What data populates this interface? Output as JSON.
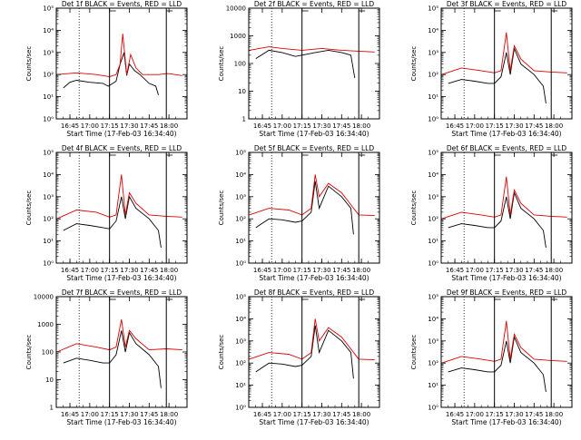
{
  "chart_data": [
    {
      "type": "line",
      "title": "Det 1f BLACK = Events, RED = LLD",
      "xlabel": "Start Time (17-Feb-03 16:34:40)",
      "ylabel": "Counts/sec",
      "y_scale": "log",
      "ylim": [
        1,
        100000
      ],
      "y_tick_labels": [
        "10⁰",
        "10¹",
        "10²",
        "10³",
        "10⁴",
        "10⁵"
      ],
      "x_tick_labels": [
        "16:45",
        "17:00",
        "17:15",
        "17:30",
        "17:45",
        "18:00"
      ],
      "dotted_marker_time": "16:52",
      "solid_marker_times": [
        "17:15",
        "17:58"
      ],
      "series": [
        {
          "color": "#000000",
          "x": [
            "16:40",
            "16:45",
            "16:50",
            "17:00",
            "17:10",
            "17:14",
            "17:16",
            "17:20",
            "17:23",
            "17:26",
            "17:28",
            "17:30",
            "17:34",
            "17:38",
            "17:45",
            "17:50",
            "17:52"
          ],
          "values": [
            25,
            45,
            55,
            45,
            40,
            30,
            35,
            50,
            300,
            1000,
            90,
            300,
            150,
            100,
            40,
            30,
            12
          ]
        },
        {
          "color": "#dd0000",
          "x": [
            "16:35",
            "16:50",
            "17:05",
            "17:15",
            "17:20",
            "17:23",
            "17:25",
            "17:28",
            "17:31",
            "17:35",
            "17:40",
            "17:45",
            "17:52",
            "17:58",
            "18:00",
            "18:10"
          ],
          "values": [
            100,
            120,
            100,
            80,
            100,
            300,
            7000,
            100,
            800,
            200,
            100,
            100,
            100,
            110,
            110,
            90
          ]
        }
      ]
    },
    {
      "type": "line",
      "title": "Det 2f BLACK = Events, RED = LLD",
      "xlabel": "Start Time (17-Feb-03 16:34:40)",
      "ylabel": "Counts/sec",
      "y_scale": "log",
      "ylim": [
        1,
        10000
      ],
      "y_tick_labels": [
        "1",
        "10",
        "100",
        "1000",
        "10000"
      ],
      "x_tick_labels": [
        "16:45",
        "17:00",
        "17:15",
        "17:30",
        "17:45",
        "18:00"
      ],
      "dotted_marker_time": "16:52",
      "solid_marker_times": [
        "17:15",
        "17:58"
      ],
      "series": [
        {
          "color": "#000000",
          "x": [
            "16:40",
            "16:50",
            "17:00",
            "17:10",
            "17:15",
            "17:25",
            "17:35",
            "17:45",
            "17:52",
            "17:55"
          ],
          "values": [
            150,
            300,
            250,
            180,
            200,
            250,
            300,
            250,
            200,
            30
          ]
        },
        {
          "color": "#dd0000",
          "x": [
            "16:35",
            "16:50",
            "17:00",
            "17:15",
            "17:30",
            "17:45",
            "17:58",
            "18:10"
          ],
          "values": [
            300,
            400,
            350,
            300,
            350,
            300,
            280,
            260
          ]
        }
      ]
    },
    {
      "type": "line",
      "title": "Det 3f BLACK = Events, RED = LLD",
      "xlabel": "Start Time (17-Feb-03 16:34:40)",
      "ylabel": "Counts/sec",
      "y_scale": "log",
      "ylim": [
        1,
        100000
      ],
      "y_tick_labels": [
        "10⁰",
        "10¹",
        "10²",
        "10³",
        "10⁴",
        "10⁵"
      ],
      "x_tick_labels": [
        "16:45",
        "17:00",
        "17:15",
        "17:30",
        "17:45",
        "18:00"
      ],
      "dotted_marker_time": "16:52",
      "solid_marker_times": [
        "17:15",
        "17:58"
      ],
      "series": [
        {
          "color": "#000000",
          "x": [
            "16:40",
            "16:50",
            "17:00",
            "17:10",
            "17:15",
            "17:20",
            "17:24",
            "17:27",
            "17:30",
            "17:35",
            "17:45",
            "17:52",
            "17:54"
          ],
          "values": [
            40,
            60,
            50,
            40,
            40,
            80,
            1000,
            100,
            1500,
            300,
            100,
            30,
            5
          ]
        },
        {
          "color": "#dd0000",
          "x": [
            "16:35",
            "16:50",
            "17:05",
            "17:15",
            "17:20",
            "17:24",
            "17:27",
            "17:30",
            "17:35",
            "17:45",
            "17:58",
            "18:10"
          ],
          "values": [
            100,
            200,
            150,
            120,
            150,
            8000,
            150,
            2000,
            500,
            150,
            130,
            120
          ]
        }
      ]
    },
    {
      "type": "line",
      "title": "Det 4f BLACK = Events, RED = LLD",
      "xlabel": "Start Time (17-Feb-03 16:34:40)",
      "ylabel": "Counts/sec",
      "y_scale": "log",
      "ylim": [
        1,
        100000
      ],
      "y_tick_labels": [
        "10⁰",
        "10¹",
        "10²",
        "10³",
        "10⁴",
        "10⁵"
      ],
      "x_tick_labels": [
        "16:45",
        "17:00",
        "17:15",
        "17:30",
        "17:45",
        "18:00"
      ],
      "dotted_marker_time": "16:52",
      "solid_marker_times": [
        "17:15",
        "17:58"
      ],
      "series": [
        {
          "color": "#000000",
          "x": [
            "16:40",
            "16:50",
            "17:00",
            "17:10",
            "17:15",
            "17:20",
            "17:24",
            "17:27",
            "17:30",
            "17:35",
            "17:45",
            "17:52",
            "17:54"
          ],
          "values": [
            30,
            60,
            50,
            40,
            35,
            80,
            1000,
            100,
            1000,
            300,
            100,
            30,
            5
          ]
        },
        {
          "color": "#dd0000",
          "x": [
            "16:35",
            "16:50",
            "17:05",
            "17:15",
            "17:20",
            "17:24",
            "17:27",
            "17:30",
            "17:35",
            "17:45",
            "17:58",
            "18:10"
          ],
          "values": [
            100,
            250,
            200,
            120,
            150,
            10000,
            150,
            1500,
            500,
            150,
            130,
            120
          ]
        }
      ]
    },
    {
      "type": "line",
      "title": "Det 5f BLACK = Events, RED = LLD",
      "xlabel": "Start Time (17-Feb-03 16:34:40)",
      "ylabel": "Counts/sec",
      "y_scale": "log",
      "ylim": [
        1,
        100000
      ],
      "y_tick_labels": [
        "10⁰",
        "10¹",
        "10²",
        "10³",
        "10⁴",
        "10⁵"
      ],
      "x_tick_labels": [
        "16:45",
        "17:00",
        "17:15",
        "17:30",
        "17:45",
        "18:00"
      ],
      "dotted_marker_time": "16:52",
      "solid_marker_times": [
        "17:15",
        "17:58"
      ],
      "series": [
        {
          "color": "#000000",
          "x": [
            "16:40",
            "16:50",
            "17:00",
            "17:10",
            "17:15",
            "17:22",
            "17:25",
            "17:28",
            "17:35",
            "17:45",
            "17:52",
            "17:54"
          ],
          "values": [
            40,
            100,
            90,
            70,
            80,
            200,
            5000,
            300,
            3000,
            1000,
            300,
            20
          ]
        },
        {
          "color": "#dd0000",
          "x": [
            "16:35",
            "16:50",
            "17:05",
            "17:15",
            "17:22",
            "17:25",
            "17:28",
            "17:35",
            "17:45",
            "17:58",
            "18:10"
          ],
          "values": [
            150,
            300,
            250,
            150,
            300,
            10000,
            1000,
            4000,
            1500,
            150,
            140
          ]
        }
      ]
    },
    {
      "type": "line",
      "title": "Det 6f BLACK = Events, RED = LLD",
      "xlabel": "Start Time (17-Feb-03 16:34:40)",
      "ylabel": "Counts/sec",
      "y_scale": "log",
      "ylim": [
        1,
        100000
      ],
      "y_tick_labels": [
        "10⁰",
        "10¹",
        "10²",
        "10³",
        "10⁴",
        "10⁵"
      ],
      "x_tick_labels": [
        "16:45",
        "17:00",
        "17:15",
        "17:30",
        "17:45",
        "18:00"
      ],
      "dotted_marker_time": "16:52",
      "solid_marker_times": [
        "17:15",
        "17:58"
      ],
      "series": [
        {
          "color": "#000000",
          "x": [
            "16:40",
            "16:50",
            "17:00",
            "17:10",
            "17:15",
            "17:20",
            "17:24",
            "17:27",
            "17:30",
            "17:35",
            "17:45",
            "17:52",
            "17:54"
          ],
          "values": [
            40,
            60,
            50,
            40,
            40,
            80,
            1000,
            100,
            1500,
            300,
            100,
            30,
            5
          ]
        },
        {
          "color": "#dd0000",
          "x": [
            "16:35",
            "16:50",
            "17:05",
            "17:15",
            "17:20",
            "17:24",
            "17:27",
            "17:30",
            "17:35",
            "17:45",
            "17:58",
            "18:10"
          ],
          "values": [
            100,
            200,
            150,
            120,
            150,
            8000,
            150,
            2000,
            500,
            150,
            130,
            120
          ]
        }
      ]
    },
    {
      "type": "line",
      "title": "Det 7f BLACK = Events, RED = LLD",
      "xlabel": "Start Time (17-Feb-03 16:34:40)",
      "ylabel": "Counts/sec",
      "y_scale": "log",
      "ylim": [
        1,
        10000
      ],
      "y_tick_labels": [
        "1",
        "10",
        "100",
        "1000",
        "10000"
      ],
      "x_tick_labels": [
        "16:45",
        "17:00",
        "17:15",
        "17:30",
        "17:45",
        "18:00"
      ],
      "dotted_marker_time": "16:52",
      "solid_marker_times": [
        "17:15",
        "17:58"
      ],
      "series": [
        {
          "color": "#000000",
          "x": [
            "16:40",
            "16:50",
            "17:00",
            "17:10",
            "17:15",
            "17:20",
            "17:24",
            "17:27",
            "17:30",
            "17:35",
            "17:45",
            "17:52",
            "17:54"
          ],
          "values": [
            40,
            60,
            50,
            40,
            40,
            80,
            600,
            100,
            500,
            200,
            80,
            30,
            5
          ]
        },
        {
          "color": "#dd0000",
          "x": [
            "16:35",
            "16:50",
            "17:05",
            "17:15",
            "17:20",
            "17:24",
            "17:27",
            "17:30",
            "17:35",
            "17:45",
            "17:58",
            "18:10"
          ],
          "values": [
            100,
            200,
            150,
            120,
            150,
            1500,
            150,
            600,
            300,
            120,
            130,
            120
          ]
        }
      ]
    },
    {
      "type": "line",
      "title": "Det 8f BLACK = Events, RED = LLD",
      "xlabel": "Start Time (17-Feb-03 16:34:40)",
      "ylabel": "Counts/sec",
      "y_scale": "log",
      "ylim": [
        1,
        100000
      ],
      "y_tick_labels": [
        "10⁰",
        "10¹",
        "10²",
        "10³",
        "10⁴",
        "10⁵"
      ],
      "x_tick_labels": [
        "16:45",
        "17:00",
        "17:15",
        "17:30",
        "17:45",
        "18:00"
      ],
      "dotted_marker_time": "16:52",
      "solid_marker_times": [
        "17:15",
        "17:58"
      ],
      "series": [
        {
          "color": "#000000",
          "x": [
            "16:40",
            "16:50",
            "17:00",
            "17:10",
            "17:15",
            "17:22",
            "17:25",
            "17:28",
            "17:35",
            "17:45",
            "17:52",
            "17:54"
          ],
          "values": [
            40,
            100,
            90,
            70,
            80,
            200,
            5000,
            300,
            3000,
            1000,
            300,
            20
          ]
        },
        {
          "color": "#dd0000",
          "x": [
            "16:35",
            "16:50",
            "17:05",
            "17:15",
            "17:22",
            "17:25",
            "17:28",
            "17:35",
            "17:45",
            "17:58",
            "18:10"
          ],
          "values": [
            150,
            300,
            250,
            150,
            300,
            10000,
            1000,
            4000,
            1500,
            150,
            140
          ]
        }
      ]
    },
    {
      "type": "line",
      "title": "Det 9f BLACK = Events, RED = LLD",
      "xlabel": "Start Time (17-Feb-03 16:34:40)",
      "ylabel": "Counts/sec",
      "y_scale": "log",
      "ylim": [
        1,
        100000
      ],
      "y_tick_labels": [
        "10⁰",
        "10¹",
        "10²",
        "10³",
        "10⁴",
        "10⁵"
      ],
      "x_tick_labels": [
        "16:45",
        "17:00",
        "17:15",
        "17:30",
        "17:45",
        "18:00"
      ],
      "dotted_marker_time": "16:52",
      "solid_marker_times": [
        "17:15",
        "17:58"
      ],
      "series": [
        {
          "color": "#000000",
          "x": [
            "16:40",
            "16:50",
            "17:00",
            "17:10",
            "17:15",
            "17:20",
            "17:24",
            "17:27",
            "17:30",
            "17:35",
            "17:45",
            "17:52",
            "17:54"
          ],
          "values": [
            40,
            60,
            50,
            40,
            40,
            80,
            1000,
            100,
            1500,
            300,
            100,
            30,
            5
          ]
        },
        {
          "color": "#dd0000",
          "x": [
            "16:35",
            "16:50",
            "17:05",
            "17:15",
            "17:20",
            "17:24",
            "17:27",
            "17:30",
            "17:35",
            "17:45",
            "17:58",
            "18:10"
          ],
          "values": [
            100,
            200,
            150,
            120,
            150,
            8000,
            150,
            2000,
            500,
            150,
            130,
            120
          ]
        }
      ]
    }
  ]
}
